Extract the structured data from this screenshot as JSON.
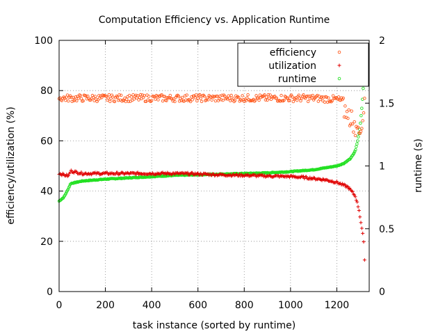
{
  "chart_data": {
    "type": "scatter",
    "title": "Computation Efficiency vs. Application Runtime",
    "xlabel": "task instance (sorted by runtime)",
    "ylabel": "efficiency/utilization (%)",
    "y2label": "runtime (s)",
    "xlim": [
      0,
      1340
    ],
    "ylim": [
      0,
      100
    ],
    "y2lim": [
      0,
      2
    ],
    "xticks": [
      0,
      200,
      400,
      600,
      800,
      1000,
      1200
    ],
    "yticks": [
      0,
      20,
      40,
      60,
      80,
      100
    ],
    "y2ticks": [
      0,
      0.5,
      1,
      1.5,
      2
    ],
    "grid": true,
    "legend_position": "top-right",
    "series": [
      {
        "name": "efficiency",
        "axis": "left",
        "marker": "circle",
        "color": "#ff5a1e",
        "x": [
          0,
          50,
          100,
          200,
          300,
          400,
          500,
          600,
          700,
          800,
          900,
          1000,
          1100,
          1200,
          1250,
          1280,
          1300,
          1310,
          1320
        ],
        "y": [
          77,
          77,
          77,
          77,
          77,
          77,
          77,
          77,
          77,
          77,
          77,
          77,
          77,
          76.5,
          75,
          70,
          65,
          72,
          77
        ]
      },
      {
        "name": "utilization",
        "axis": "left",
        "marker": "plus",
        "color": "#e00000",
        "x": [
          0,
          20,
          40,
          50,
          100,
          200,
          300,
          400,
          500,
          600,
          700,
          800,
          900,
          1000,
          1050,
          1100,
          1150,
          1200,
          1250,
          1280,
          1295,
          1305,
          1310,
          1315,
          1320
        ],
        "y": [
          47,
          46.5,
          46,
          48,
          47,
          47,
          47,
          47,
          47,
          46.8,
          46.5,
          46.3,
          46,
          45.8,
          45.5,
          45,
          44.5,
          43.5,
          41.5,
          38,
          33,
          27,
          24,
          21,
          13
        ]
      },
      {
        "name": "runtime",
        "axis": "right",
        "marker": "circle",
        "color": "#22e022",
        "x": [
          0,
          20,
          35,
          50,
          100,
          200,
          300,
          400,
          500,
          600,
          700,
          800,
          900,
          1000,
          1100,
          1150,
          1200,
          1230,
          1260,
          1280,
          1290,
          1300,
          1305,
          1310,
          1315,
          1320
        ],
        "y": [
          0.72,
          0.75,
          0.8,
          0.86,
          0.88,
          0.895,
          0.905,
          0.915,
          0.925,
          0.93,
          0.935,
          0.94,
          0.945,
          0.955,
          0.97,
          0.985,
          1.0,
          1.02,
          1.06,
          1.12,
          1.2,
          1.3,
          1.4,
          1.5,
          1.65,
          1.95
        ]
      }
    ]
  }
}
